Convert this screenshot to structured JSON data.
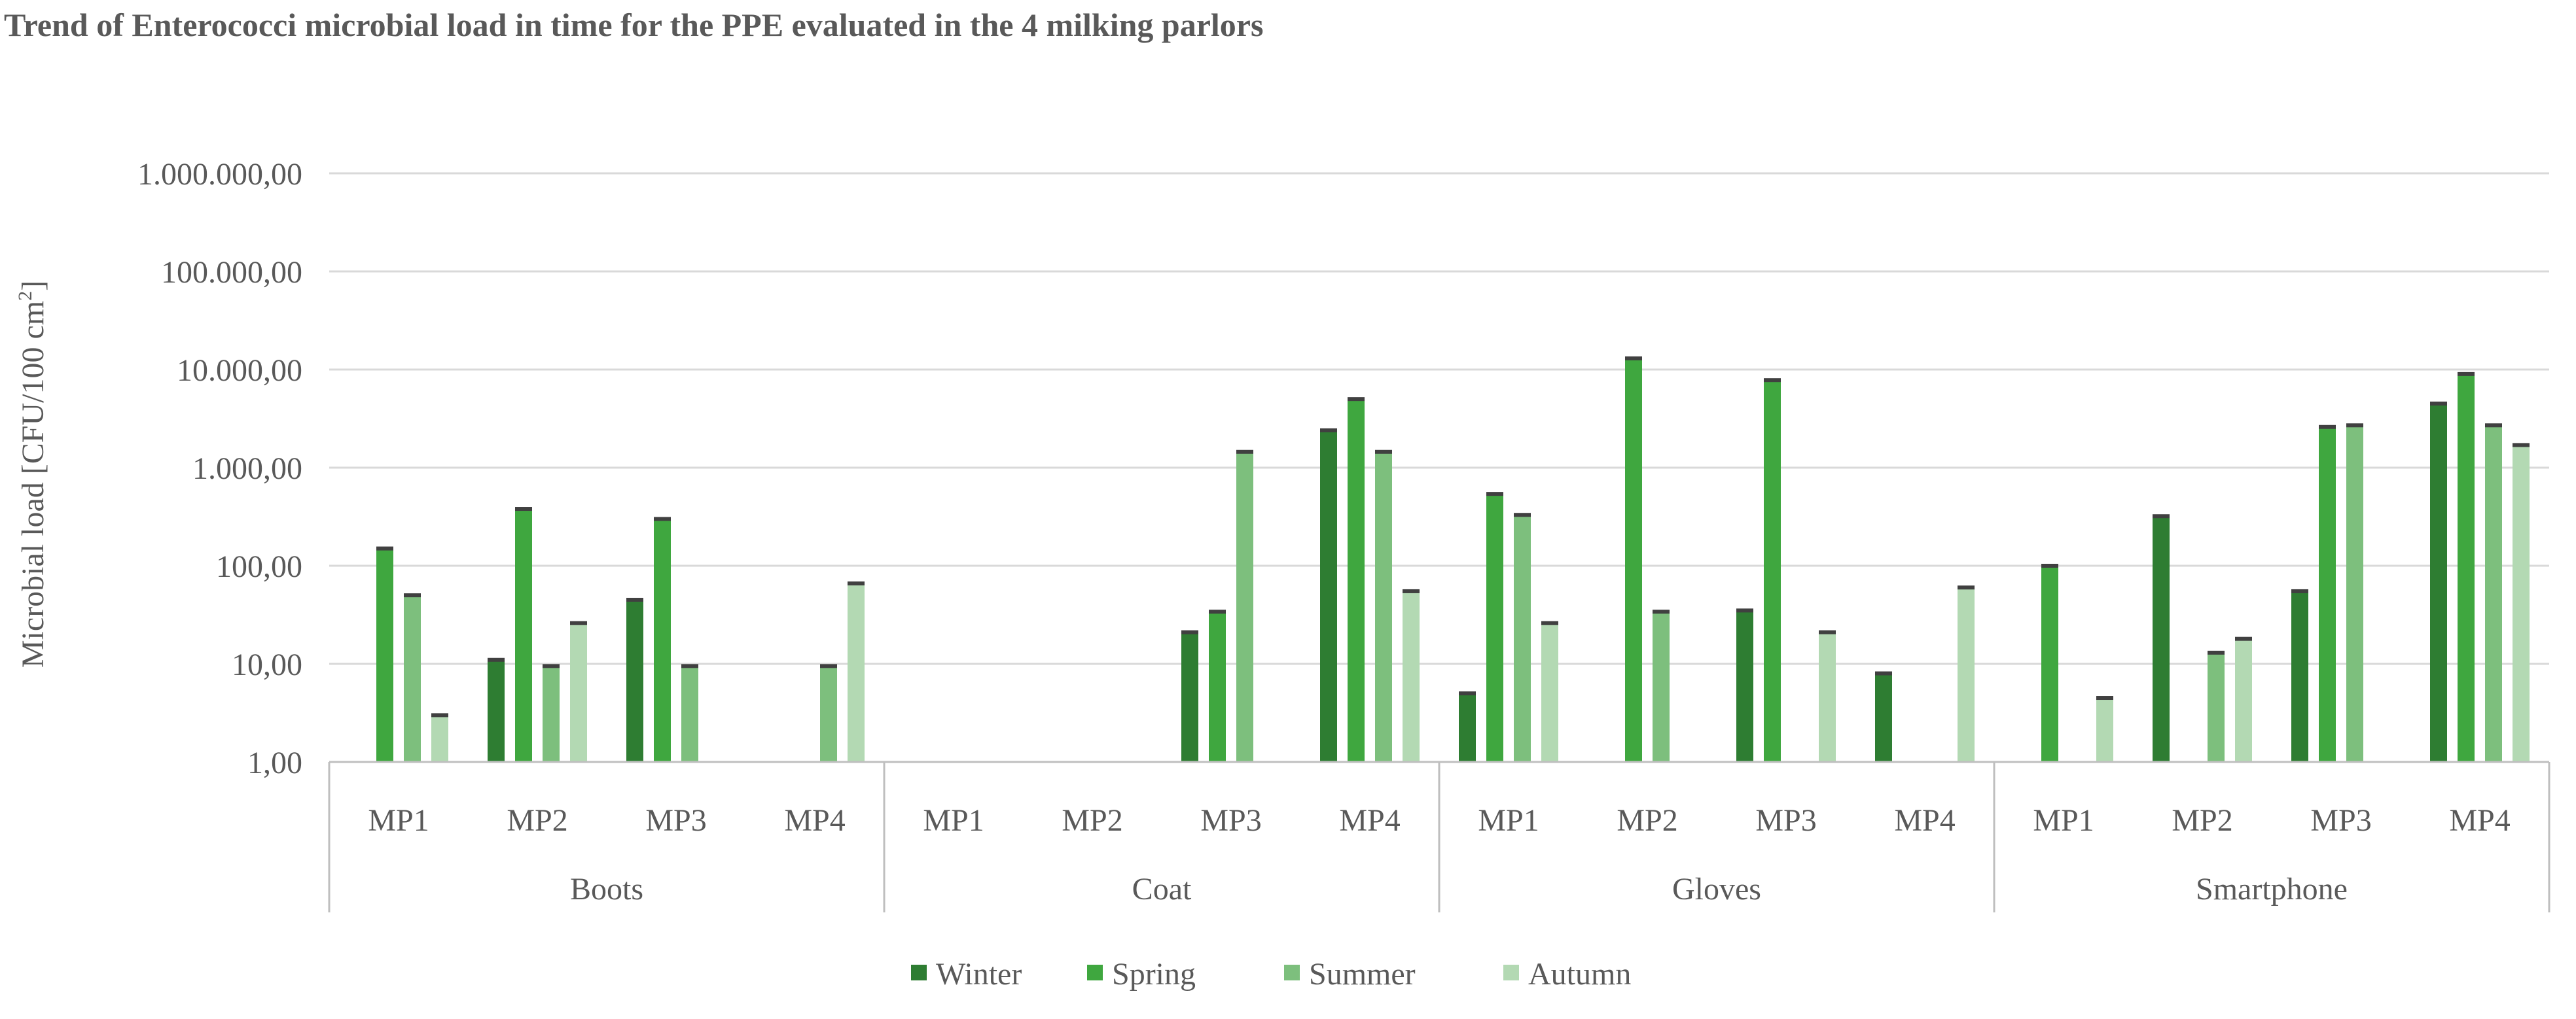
{
  "chart_data": {
    "type": "bar",
    "title": "Trend  of Enterococci microbial  load  in  time for the PPE evaluated in the 4 milking parlors",
    "ylabel_main": "Microbial load [CFU/100 cm",
    "ylabel_sup": "2",
    "ylabel_close": "]",
    "xlabel": "",
    "yscale": "log",
    "ylim": [
      1,
      1000000
    ],
    "yticks": [
      {
        "value": 1,
        "label": "1,00"
      },
      {
        "value": 10,
        "label": "10,00"
      },
      {
        "value": 100,
        "label": "100,00"
      },
      {
        "value": 1000,
        "label": "1.000,00"
      },
      {
        "value": 10000,
        "label": "10.000,00"
      },
      {
        "value": 100000,
        "label": "100.000,00"
      },
      {
        "value": 1000000,
        "label": "1.000.000,00"
      }
    ],
    "grid": true,
    "legend_position": "bottom",
    "groups": [
      "Boots",
      "Coat",
      "Gloves",
      "Smartphone"
    ],
    "subcategories": [
      "MP1",
      "MP2",
      "MP3",
      "MP4"
    ],
    "series": [
      {
        "name": "Winter",
        "color": "#2E7D32",
        "values": [
          null,
          11,
          45,
          null,
          null,
          null,
          21,
          2400,
          5,
          null,
          35,
          8,
          null,
          320,
          55,
          4500
        ]
      },
      {
        "name": "Spring",
        "color": "#3FA73F",
        "values": [
          150,
          380,
          300,
          null,
          null,
          null,
          34,
          5000,
          540,
          13000,
          7800,
          null,
          100,
          null,
          2600,
          9000
        ]
      },
      {
        "name": "Summer",
        "color": "#7DBF7D",
        "values": [
          50,
          9.5,
          9.5,
          9.5,
          null,
          null,
          1450,
          1450,
          330,
          34,
          null,
          null,
          null,
          13,
          2700,
          2700
        ]
      },
      {
        "name": "Autumn",
        "color": "#B3D9B3",
        "values": [
          3,
          26,
          null,
          66,
          null,
          null,
          null,
          55,
          26,
          null,
          21,
          60,
          4.5,
          18,
          null,
          1700
        ]
      }
    ]
  }
}
